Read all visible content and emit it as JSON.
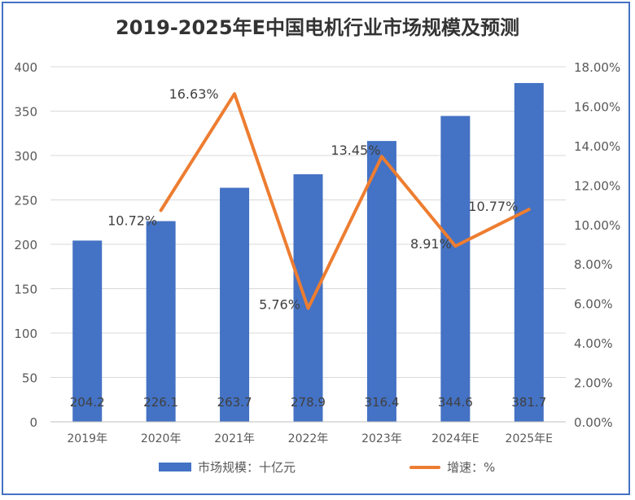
{
  "title": "2019-2025年E中国电机行业市场规模及预测",
  "colors": {
    "bar": "#4472c4",
    "line": "#ed7d31",
    "frame": "#4472c4",
    "grid": "#d9d9d9",
    "text": "#595959"
  },
  "chart_data": {
    "type": "bar",
    "title": "2019-2025年E中国电机行业市场规模及预测",
    "categories": [
      "2019年",
      "2020年",
      "2021年",
      "2022年",
      "2023年",
      "2024年E",
      "2025年E"
    ],
    "series": [
      {
        "name": "市场规模：十亿元",
        "type": "bar",
        "axis": "left",
        "values": [
          204.2,
          226.1,
          263.7,
          278.9,
          316.4,
          344.6,
          381.7
        ],
        "labels": [
          "204.2",
          "226.1",
          "263.7",
          "278.9",
          "316.4",
          "344.6",
          "381.7"
        ]
      },
      {
        "name": "增速：%",
        "type": "line",
        "axis": "right",
        "values": [
          null,
          10.72,
          16.63,
          5.76,
          13.45,
          8.91,
          10.77
        ],
        "labels": [
          "",
          "10.72%",
          "16.63%",
          "5.76%",
          "13.45%",
          "8.91%",
          "10.77%"
        ]
      }
    ],
    "y_left": {
      "min": 0,
      "max": 400,
      "step": 50,
      "tick_labels": [
        "0",
        "50",
        "100",
        "150",
        "200",
        "250",
        "300",
        "350",
        "400"
      ]
    },
    "y_right": {
      "min": 0,
      "max": 18,
      "step": 2,
      "tick_labels": [
        "0.00%",
        "2.00%",
        "4.00%",
        "6.00%",
        "8.00%",
        "10.00%",
        "12.00%",
        "14.00%",
        "16.00%",
        "18.00%"
      ]
    },
    "grid": true,
    "legend": "bottom"
  }
}
